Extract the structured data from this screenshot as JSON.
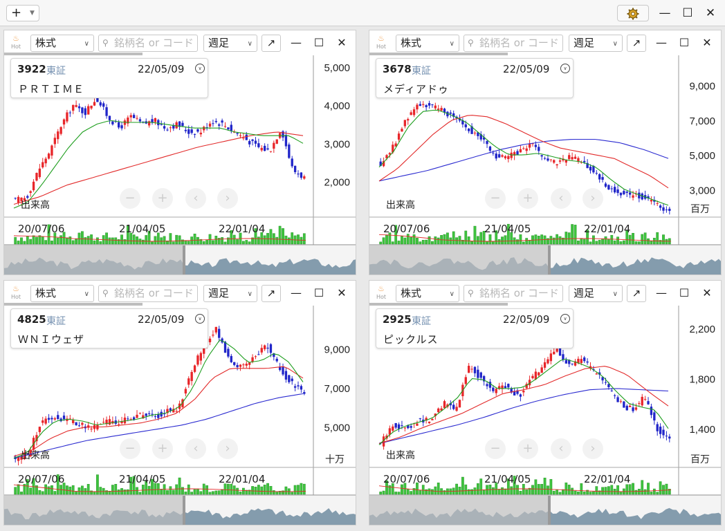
{
  "titlebar": {
    "add_label": "+",
    "minimize": "—",
    "maximize": "☐",
    "close": "✕"
  },
  "common": {
    "market_select": "株式",
    "search_placeholder": "銘柄名 or コード",
    "period_select": "週足",
    "popout": "↗",
    "hot_label": "Hot",
    "minimize": "—",
    "maximize": "☐",
    "close": "✕",
    "date": "22/05/09",
    "market": "東証",
    "volume_label": "出来高",
    "x_ticks": [
      "20/07/06",
      "21/04/05",
      "22/01/04"
    ],
    "zoom_out": "−",
    "zoom_in": "+",
    "prev": "‹",
    "next": "›"
  },
  "colors": {
    "up": "#e8262a",
    "down": "#2126c9",
    "ma_short": "#1e9e1e",
    "ma_mid": "#e22a2a",
    "ma_long": "#2a2ad0",
    "volume": "#3ec33e",
    "nav_fill": "#5f7f96"
  },
  "panels": [
    {
      "code": "3922",
      "name": "ＰＲＴＩＭＥ",
      "y_ticks": [
        "5,000",
        "4,000",
        "3,000",
        "2,000"
      ],
      "volume_unit": "",
      "chart_data": {
        "type": "candlestick",
        "x_range": [
          "2020/07/06",
          "2022/05/09"
        ],
        "ylim": [
          1100,
          5200
        ],
        "y_ticks": [
          5000,
          4000,
          3000,
          2000
        ],
        "close_points": [
          1500,
          1600,
          2300,
          2800,
          3500,
          4000,
          3800,
          4200,
          3700,
          3400,
          3700,
          3500,
          3600,
          3400,
          3500,
          3300,
          3300,
          3600,
          3500,
          3300,
          3100,
          2900,
          2800,
          3400,
          2300,
          2100
        ],
        "ma_short": [
          1300,
          1450,
          1900,
          2400,
          2900,
          3300,
          3500,
          3600,
          3550,
          3550,
          3550,
          3500,
          3450,
          3400,
          3400,
          3400,
          3300,
          3250,
          3200,
          3200,
          3200,
          3000
        ],
        "ma_mid": [
          1400,
          1600,
          1900,
          2100,
          2300,
          2500,
          2700,
          2900,
          3050,
          3200,
          3300,
          3200
        ],
        "ma_long": []
      }
    },
    {
      "code": "3678",
      "name": "メディアドゥ",
      "y_ticks": [
        "9,000",
        "7,000",
        "5,000",
        "3,000"
      ],
      "volume_unit": "百万",
      "chart_data": {
        "type": "candlestick",
        "x_range": [
          "2020/07/06",
          "2022/05/09"
        ],
        "ylim": [
          1500,
          10500
        ],
        "y_ticks": [
          9000,
          7000,
          5000,
          3000
        ],
        "close_points": [
          4500,
          5500,
          7000,
          8000,
          7800,
          7500,
          7200,
          6500,
          6000,
          5000,
          4800,
          5200,
          5600,
          4800,
          4500,
          4900,
          4700,
          4000,
          3200,
          2800,
          2700,
          2600,
          2100,
          1800
        ],
        "ma_short": [
          4300,
          5200,
          6600,
          7500,
          7600,
          7300,
          6900,
          6200,
          5500,
          5000,
          5000,
          5100,
          4900,
          4700,
          4600,
          4300,
          3600,
          3000,
          2700,
          2400,
          2100
        ],
        "ma_mid": [
          3500,
          4200,
          5200,
          6200,
          7000,
          7300,
          7200,
          6800,
          6300,
          5800,
          5400,
          5200,
          5000,
          4800,
          4300,
          3800,
          3100
        ],
        "ma_long": [
          3500,
          3800,
          4100,
          4500,
          4900,
          5300,
          5600,
          5800,
          5900,
          5900,
          5700,
          5300,
          4800
        ]
      }
    },
    {
      "code": "4825",
      "name": "ＷＮＩウェザ",
      "y_ticks": [
        "9,000",
        "7,000",
        "5,000"
      ],
      "volume_unit": "十万",
      "chart_data": {
        "type": "candlestick",
        "x_range": [
          "2020/07/06",
          "2022/05/09"
        ],
        "ylim": [
          3000,
          11000
        ],
        "y_ticks": [
          9000,
          7000,
          5000
        ],
        "close_points": [
          3400,
          3600,
          5200,
          5500,
          5400,
          5200,
          4900,
          5300,
          5200,
          5400,
          5600,
          5500,
          5800,
          6000,
          7800,
          9200,
          10000,
          8500,
          8000,
          8500,
          9200,
          8000,
          7200,
          6800
        ],
        "ma_short": [
          3400,
          3700,
          4700,
          5300,
          5400,
          5300,
          5100,
          5200,
          5300,
          5400,
          5600,
          5700,
          6000,
          7000,
          8500,
          9500,
          9000,
          8300,
          8400,
          8800,
          8300,
          7300
        ],
        "ma_mid": [
          3500,
          3800,
          4400,
          4800,
          5000,
          5000,
          5100,
          5200,
          5400,
          5700,
          6400,
          7500,
          8000,
          8000,
          8000,
          8100,
          7500
        ],
        "ma_long": [
          3400,
          3700,
          4000,
          4300,
          4500,
          4700,
          4900,
          5100,
          5400,
          5800,
          6200,
          6500,
          6700
        ]
      }
    },
    {
      "code": "2925",
      "name": "ピックルス",
      "y_ticks": [
        "2,200",
        "1,800",
        "1,400"
      ],
      "volume_unit": "百万",
      "chart_data": {
        "type": "candlestick",
        "x_range": [
          "2020/07/06",
          "2022/05/09"
        ],
        "ylim": [
          1100,
          2350
        ],
        "y_ticks": [
          2200,
          1800,
          1400
        ],
        "close_points": [
          1280,
          1430,
          1400,
          1470,
          1460,
          1600,
          1550,
          1900,
          1800,
          1700,
          1750,
          1650,
          1800,
          1900,
          2050,
          1900,
          1950,
          1850,
          1750,
          1600,
          1550,
          1650,
          1400,
          1300
        ],
        "ma_short": [
          1270,
          1370,
          1420,
          1450,
          1480,
          1560,
          1650,
          1800,
          1790,
          1720,
          1720,
          1730,
          1800,
          1880,
          1960,
          1930,
          1890,
          1820,
          1700,
          1600,
          1570,
          1550,
          1400
        ],
        "ma_mid": [
          1280,
          1330,
          1400,
          1460,
          1520,
          1600,
          1680,
          1710,
          1750,
          1820,
          1880,
          1900,
          1830,
          1700,
          1580
        ],
        "ma_long": [
          1280,
          1330,
          1380,
          1430,
          1490,
          1560,
          1620,
          1670,
          1710,
          1720,
          1710,
          1700
        ]
      }
    }
  ]
}
